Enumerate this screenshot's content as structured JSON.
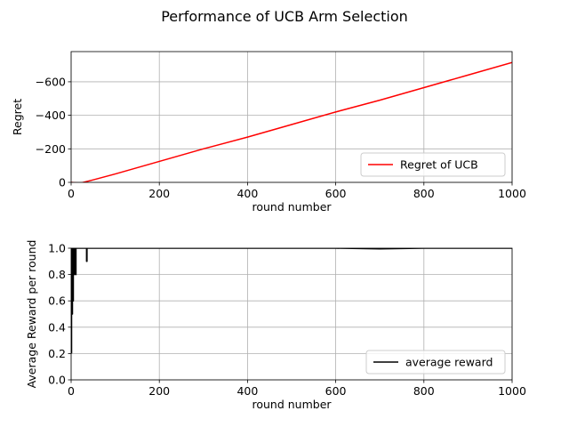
{
  "figure": {
    "title": "Performance of UCB Arm Selection"
  },
  "chart_data": [
    {
      "type": "line",
      "xlabel": "round number",
      "ylabel": "Regret",
      "xlim": [
        0,
        1000
      ],
      "ylim": [
        0,
        -780
      ],
      "y_axis_inverted": true,
      "xticks": [
        0,
        200,
        400,
        600,
        800,
        1000
      ],
      "yticks": [
        0,
        -200,
        -400,
        -600
      ],
      "ytick_labels": [
        "0",
        "−200",
        "−400",
        "−600"
      ],
      "grid": true,
      "legend_position": "lower right",
      "series": [
        {
          "name": "Regret of UCB",
          "color": "#ff0000",
          "x": [
            0,
            20,
            50,
            100,
            200,
            300,
            400,
            500,
            600,
            700,
            800,
            900,
            1000
          ],
          "y": [
            0,
            5,
            -15,
            -50,
            -125,
            -200,
            -270,
            -345,
            -420,
            -490,
            -565,
            -640,
            -715
          ]
        }
      ]
    },
    {
      "type": "line",
      "xlabel": "round number",
      "ylabel": "Average Reward per round",
      "xlim": [
        0,
        1000
      ],
      "ylim": [
        0,
        1.0
      ],
      "xticks": [
        0,
        200,
        400,
        600,
        800,
        1000
      ],
      "yticks": [
        0.0,
        0.2,
        0.4,
        0.6,
        0.8,
        1.0
      ],
      "ytick_labels": [
        "0.0",
        "0.2",
        "0.4",
        "0.6",
        "0.8",
        "1.0"
      ],
      "grid": true,
      "legend_position": "lower right",
      "series": [
        {
          "name": "average reward",
          "color": "#000000",
          "x": [
            1,
            1,
            2,
            2,
            3,
            3,
            4,
            4,
            5,
            5,
            6,
            6,
            7,
            7,
            8,
            8,
            9,
            9,
            10,
            10,
            11,
            11,
            12,
            12,
            15,
            20,
            25,
            30,
            35,
            35,
            36,
            36,
            37,
            40,
            60,
            100,
            200,
            300,
            400,
            500,
            600,
            700,
            800,
            900,
            1000
          ],
          "y": [
            0.2,
            1.0,
            1.0,
            0.5,
            0.5,
            1.0,
            1.0,
            0.6,
            0.6,
            1.0,
            1.0,
            0.8,
            0.8,
            1.0,
            1.0,
            0.85,
            0.85,
            1.0,
            1.0,
            0.8,
            0.8,
            1.0,
            1.0,
            1.0,
            1.0,
            1.0,
            1.0,
            1.0,
            1.0,
            0.9,
            0.9,
            1.0,
            1.0,
            1.0,
            1.0,
            1.0,
            1.0,
            1.0,
            1.0,
            1.0,
            1.0,
            0.995,
            1.0,
            1.0,
            1.0
          ]
        }
      ]
    }
  ]
}
